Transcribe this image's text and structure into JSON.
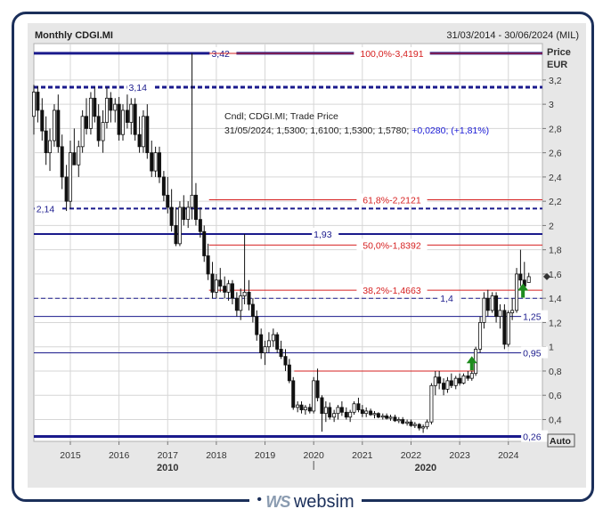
{
  "header": {
    "title": "Monthly CDGI.MI",
    "range": "31/03/2014 - 30/06/2024 (MIL)"
  },
  "info": {
    "line1": "Cndl; CDGI.MI; Trade Price",
    "line2_black": "31/05/2024; 1,5300; 1,6100; 1,5300; 1,5780;",
    "line2_blue": " +0,0280; (+1,81%)"
  },
  "price_axis": {
    "title": "Price",
    "unit": "EUR",
    "auto_label": "Auto"
  },
  "logo": {
    "mark": "WS",
    "text": "websim"
  },
  "chart_data": {
    "type": "candlestick",
    "title": "Monthly CDGI.MI",
    "period": "31/03/2014 - 30/06/2024 (MIL)",
    "ylabel": "Price EUR",
    "ylim": [
      0.22,
      3.5
    ],
    "xlim": [
      2014.25,
      2024.7
    ],
    "y_ticks": [
      {
        "v": 3.2,
        "label": "3,2"
      },
      {
        "v": 3.0,
        "label": "3"
      },
      {
        "v": 2.8,
        "label": "2,8"
      },
      {
        "v": 2.6,
        "label": "2,6"
      },
      {
        "v": 2.4,
        "label": "2,4"
      },
      {
        "v": 2.2,
        "label": "2,2"
      },
      {
        "v": 2.0,
        "label": "2"
      },
      {
        "v": 1.8,
        "label": "1,8"
      },
      {
        "v": 1.6,
        "label": "1,6"
      },
      {
        "v": 1.4,
        "label": "1,4"
      },
      {
        "v": 1.2,
        "label": "1,2"
      },
      {
        "v": 1.0,
        "label": "1"
      },
      {
        "v": 0.8,
        "label": "0,8"
      },
      {
        "v": 0.6,
        "label": "0,6"
      },
      {
        "v": 0.4,
        "label": "0,4"
      }
    ],
    "x_ticks": [
      {
        "v": 2015.0,
        "label": "2015"
      },
      {
        "v": 2016.0,
        "label": "2016"
      },
      {
        "v": 2017.0,
        "label": "2017"
      },
      {
        "v": 2018.0,
        "label": "2018"
      },
      {
        "v": 2019.0,
        "label": "2019"
      },
      {
        "v": 2020.0,
        "label": "2020"
      },
      {
        "v": 2021.0,
        "label": "2021"
      },
      {
        "v": 2022.0,
        "label": "2022"
      },
      {
        "v": 2023.0,
        "label": "2023"
      },
      {
        "v": 2024.0,
        "label": "2024"
      }
    ],
    "decade_labels": [
      {
        "v": 2017.0,
        "label": "2010"
      },
      {
        "v": 2022.3,
        "label": "2020"
      }
    ],
    "hlines": [
      {
        "y": 3.42,
        "label": "3,42",
        "x_label": 2017.9,
        "color": "#1a1a8c",
        "style": "solid",
        "width": 3
      },
      {
        "y": 3.14,
        "label": "3,14",
        "x_label": 2016.2,
        "color": "#1a1a8c",
        "style": "dashed",
        "width": 3
      },
      {
        "y": 2.14,
        "label": "2,14",
        "x_label": 2014.3,
        "color": "#1a1a8c",
        "style": "dashed",
        "width": 2
      },
      {
        "y": 1.93,
        "label": "1,93",
        "x_label": 2020.0,
        "color": "#1a1a8c",
        "style": "solid",
        "width": 2
      },
      {
        "y": 1.4,
        "label": "1,4",
        "x_label": 2022.6,
        "color": "#1a1a8c",
        "style": "dashed",
        "width": 1
      },
      {
        "y": 1.25,
        "label": "1,25",
        "x_label": 2024.3,
        "color": "#1a1a8c",
        "style": "solid",
        "width": 1
      },
      {
        "y": 0.95,
        "label": "0,95",
        "x_label": 2024.3,
        "color": "#1a1a8c",
        "style": "solid",
        "width": 1
      },
      {
        "y": 0.26,
        "label": "0,26",
        "x_label": 2024.3,
        "color": "#1a1a8c",
        "style": "solid",
        "width": 3
      }
    ],
    "fib_lines": [
      {
        "y": 3.4191,
        "label": "100,0%-3,4191",
        "x_start": 2017.85
      },
      {
        "y": 2.2121,
        "label": "61,8%-2,2121",
        "x_start": 2017.85
      },
      {
        "y": 1.8392,
        "label": "50,0%-1,8392",
        "x_start": 2017.85
      },
      {
        "y": 1.4663,
        "label": "38,2%-1,4663",
        "x_start": 2017.85
      }
    ],
    "red_segments": [
      {
        "y": 0.8,
        "x_start": 2019.6,
        "x_end": 2023.3
      }
    ],
    "markers": [
      {
        "type": "up-arrow",
        "x": 2023.25,
        "y": 0.82,
        "color": "#1e8c1e"
      },
      {
        "type": "up-arrow",
        "x": 2024.3,
        "y": 1.42,
        "color": "#1e8c1e"
      }
    ],
    "candles": [
      {
        "t": 2014.25,
        "o": 2.9,
        "h": 3.16,
        "l": 2.75,
        "c": 3.1
      },
      {
        "t": 2014.33,
        "o": 3.1,
        "h": 3.15,
        "l": 2.85,
        "c": 2.95
      },
      {
        "t": 2014.42,
        "o": 2.95,
        "h": 3.05,
        "l": 2.7,
        "c": 2.78
      },
      {
        "t": 2014.5,
        "o": 2.78,
        "h": 2.9,
        "l": 2.5,
        "c": 2.6
      },
      {
        "t": 2014.58,
        "o": 2.6,
        "h": 2.8,
        "l": 2.45,
        "c": 2.7
      },
      {
        "t": 2014.67,
        "o": 2.7,
        "h": 3.0,
        "l": 2.65,
        "c": 2.95
      },
      {
        "t": 2014.75,
        "o": 2.95,
        "h": 3.08,
        "l": 2.6,
        "c": 2.65
      },
      {
        "t": 2014.83,
        "o": 2.65,
        "h": 2.75,
        "l": 2.3,
        "c": 2.4
      },
      {
        "t": 2014.92,
        "o": 2.4,
        "h": 2.5,
        "l": 2.12,
        "c": 2.2
      },
      {
        "t": 2015.0,
        "o": 2.2,
        "h": 2.7,
        "l": 2.14,
        "c": 2.6
      },
      {
        "t": 2015.08,
        "o": 2.6,
        "h": 2.8,
        "l": 2.5,
        "c": 2.5
      },
      {
        "t": 2015.17,
        "o": 2.5,
        "h": 2.7,
        "l": 2.4,
        "c": 2.65
      },
      {
        "t": 2015.25,
        "o": 2.65,
        "h": 2.95,
        "l": 2.6,
        "c": 2.9
      },
      {
        "t": 2015.33,
        "o": 2.9,
        "h": 3.05,
        "l": 2.75,
        "c": 2.8
      },
      {
        "t": 2015.42,
        "o": 2.8,
        "h": 3.1,
        "l": 2.75,
        "c": 3.05
      },
      {
        "t": 2015.5,
        "o": 3.05,
        "h": 3.14,
        "l": 2.85,
        "c": 2.9
      },
      {
        "t": 2015.58,
        "o": 2.9,
        "h": 3.0,
        "l": 2.65,
        "c": 2.7
      },
      {
        "t": 2015.67,
        "o": 2.7,
        "h": 2.95,
        "l": 2.6,
        "c": 2.85
      },
      {
        "t": 2015.75,
        "o": 2.85,
        "h": 3.14,
        "l": 2.8,
        "c": 3.05
      },
      {
        "t": 2015.83,
        "o": 3.05,
        "h": 3.1,
        "l": 2.85,
        "c": 2.95
      },
      {
        "t": 2015.92,
        "o": 2.95,
        "h": 3.05,
        "l": 2.85,
        "c": 3.0
      },
      {
        "t": 2016.0,
        "o": 3.0,
        "h": 3.06,
        "l": 2.7,
        "c": 2.75
      },
      {
        "t": 2016.08,
        "o": 2.75,
        "h": 3.0,
        "l": 2.7,
        "c": 2.95
      },
      {
        "t": 2016.17,
        "o": 2.95,
        "h": 3.08,
        "l": 2.8,
        "c": 2.85
      },
      {
        "t": 2016.25,
        "o": 2.85,
        "h": 3.05,
        "l": 2.75,
        "c": 3.0
      },
      {
        "t": 2016.33,
        "o": 3.0,
        "h": 3.05,
        "l": 2.7,
        "c": 2.75
      },
      {
        "t": 2016.42,
        "o": 2.75,
        "h": 2.9,
        "l": 2.6,
        "c": 2.65
      },
      {
        "t": 2016.5,
        "o": 2.65,
        "h": 2.95,
        "l": 2.6,
        "c": 2.9
      },
      {
        "t": 2016.58,
        "o": 2.9,
        "h": 3.0,
        "l": 2.55,
        "c": 2.6
      },
      {
        "t": 2016.67,
        "o": 2.6,
        "h": 2.7,
        "l": 2.4,
        "c": 2.45
      },
      {
        "t": 2016.75,
        "o": 2.45,
        "h": 2.65,
        "l": 2.4,
        "c": 2.6
      },
      {
        "t": 2016.83,
        "o": 2.6,
        "h": 2.65,
        "l": 2.35,
        "c": 2.4
      },
      {
        "t": 2016.92,
        "o": 2.4,
        "h": 2.45,
        "l": 2.2,
        "c": 2.25
      },
      {
        "t": 2017.0,
        "o": 2.25,
        "h": 2.4,
        "l": 2.1,
        "c": 2.15
      },
      {
        "t": 2017.08,
        "o": 2.15,
        "h": 2.3,
        "l": 1.95,
        "c": 2.0
      },
      {
        "t": 2017.17,
        "o": 2.0,
        "h": 2.15,
        "l": 1.83,
        "c": 1.85
      },
      {
        "t": 2017.25,
        "o": 1.85,
        "h": 2.2,
        "l": 1.83,
        "c": 2.15
      },
      {
        "t": 2017.33,
        "o": 2.15,
        "h": 2.25,
        "l": 2.0,
        "c": 2.05
      },
      {
        "t": 2017.42,
        "o": 2.05,
        "h": 2.2,
        "l": 1.98,
        "c": 2.15
      },
      {
        "t": 2017.5,
        "o": 2.15,
        "h": 3.42,
        "l": 2.05,
        "c": 2.25
      },
      {
        "t": 2017.58,
        "o": 2.25,
        "h": 2.35,
        "l": 2.0,
        "c": 2.05
      },
      {
        "t": 2017.67,
        "o": 2.05,
        "h": 2.15,
        "l": 1.9,
        "c": 1.95
      },
      {
        "t": 2017.75,
        "o": 1.95,
        "h": 2.0,
        "l": 1.7,
        "c": 1.75
      },
      {
        "t": 2017.83,
        "o": 1.75,
        "h": 1.85,
        "l": 1.55,
        "c": 1.6
      },
      {
        "t": 2017.92,
        "o": 1.6,
        "h": 1.7,
        "l": 1.4,
        "c": 1.45
      },
      {
        "t": 2018.0,
        "o": 1.45,
        "h": 1.6,
        "l": 1.4,
        "c": 1.55
      },
      {
        "t": 2018.08,
        "o": 1.55,
        "h": 1.65,
        "l": 1.45,
        "c": 1.5
      },
      {
        "t": 2018.17,
        "o": 1.5,
        "h": 1.58,
        "l": 1.4,
        "c": 1.45
      },
      {
        "t": 2018.25,
        "o": 1.45,
        "h": 1.55,
        "l": 1.38,
        "c": 1.52
      },
      {
        "t": 2018.33,
        "o": 1.52,
        "h": 1.55,
        "l": 1.35,
        "c": 1.4
      },
      {
        "t": 2018.42,
        "o": 1.4,
        "h": 1.45,
        "l": 1.25,
        "c": 1.3
      },
      {
        "t": 2018.5,
        "o": 1.3,
        "h": 1.48,
        "l": 1.22,
        "c": 1.42
      },
      {
        "t": 2018.58,
        "o": 1.42,
        "h": 1.93,
        "l": 1.35,
        "c": 1.45
      },
      {
        "t": 2018.67,
        "o": 1.45,
        "h": 1.55,
        "l": 1.3,
        "c": 1.35
      },
      {
        "t": 2018.75,
        "o": 1.35,
        "h": 1.4,
        "l": 1.2,
        "c": 1.25
      },
      {
        "t": 2018.83,
        "o": 1.25,
        "h": 1.3,
        "l": 1.05,
        "c": 1.1
      },
      {
        "t": 2018.92,
        "o": 1.1,
        "h": 1.15,
        "l": 0.9,
        "c": 0.95
      },
      {
        "t": 2019.0,
        "o": 0.95,
        "h": 1.05,
        "l": 0.85,
        "c": 1.0
      },
      {
        "t": 2019.08,
        "o": 1.0,
        "h": 1.12,
        "l": 0.95,
        "c": 1.05
      },
      {
        "t": 2019.17,
        "o": 1.05,
        "h": 1.15,
        "l": 1.0,
        "c": 1.1
      },
      {
        "t": 2019.25,
        "o": 1.1,
        "h": 1.12,
        "l": 0.95,
        "c": 0.98
      },
      {
        "t": 2019.33,
        "o": 0.98,
        "h": 1.05,
        "l": 0.9,
        "c": 0.92
      },
      {
        "t": 2019.42,
        "o": 0.92,
        "h": 0.98,
        "l": 0.8,
        "c": 0.85
      },
      {
        "t": 2019.5,
        "o": 0.85,
        "h": 0.9,
        "l": 0.7,
        "c": 0.72
      },
      {
        "t": 2019.58,
        "o": 0.72,
        "h": 0.75,
        "l": 0.48,
        "c": 0.5
      },
      {
        "t": 2019.67,
        "o": 0.5,
        "h": 0.55,
        "l": 0.46,
        "c": 0.52
      },
      {
        "t": 2019.75,
        "o": 0.52,
        "h": 0.55,
        "l": 0.45,
        "c": 0.48
      },
      {
        "t": 2019.83,
        "o": 0.48,
        "h": 0.52,
        "l": 0.44,
        "c": 0.5
      },
      {
        "t": 2019.92,
        "o": 0.5,
        "h": 0.53,
        "l": 0.45,
        "c": 0.47
      },
      {
        "t": 2020.0,
        "o": 0.47,
        "h": 0.75,
        "l": 0.45,
        "c": 0.72
      },
      {
        "t": 2020.08,
        "o": 0.72,
        "h": 0.82,
        "l": 0.55,
        "c": 0.58
      },
      {
        "t": 2020.17,
        "o": 0.58,
        "h": 0.6,
        "l": 0.3,
        "c": 0.45
      },
      {
        "t": 2020.25,
        "o": 0.45,
        "h": 0.55,
        "l": 0.38,
        "c": 0.5
      },
      {
        "t": 2020.33,
        "o": 0.5,
        "h": 0.54,
        "l": 0.4,
        "c": 0.42
      },
      {
        "t": 2020.42,
        "o": 0.42,
        "h": 0.48,
        "l": 0.38,
        "c": 0.45
      },
      {
        "t": 2020.5,
        "o": 0.45,
        "h": 0.52,
        "l": 0.4,
        "c": 0.5
      },
      {
        "t": 2020.58,
        "o": 0.5,
        "h": 0.55,
        "l": 0.43,
        "c": 0.46
      },
      {
        "t": 2020.67,
        "o": 0.46,
        "h": 0.5,
        "l": 0.4,
        "c": 0.42
      },
      {
        "t": 2020.75,
        "o": 0.42,
        "h": 0.48,
        "l": 0.38,
        "c": 0.46
      },
      {
        "t": 2020.83,
        "o": 0.46,
        "h": 0.55,
        "l": 0.44,
        "c": 0.53
      },
      {
        "t": 2020.92,
        "o": 0.53,
        "h": 0.58,
        "l": 0.46,
        "c": 0.48
      },
      {
        "t": 2021.0,
        "o": 0.48,
        "h": 0.52,
        "l": 0.42,
        "c": 0.45
      },
      {
        "t": 2021.08,
        "o": 0.45,
        "h": 0.5,
        "l": 0.42,
        "c": 0.47
      },
      {
        "t": 2021.17,
        "o": 0.47,
        "h": 0.49,
        "l": 0.43,
        "c": 0.44
      },
      {
        "t": 2021.25,
        "o": 0.44,
        "h": 0.47,
        "l": 0.41,
        "c": 0.45
      },
      {
        "t": 2021.33,
        "o": 0.45,
        "h": 0.46,
        "l": 0.41,
        "c": 0.42
      },
      {
        "t": 2021.42,
        "o": 0.42,
        "h": 0.45,
        "l": 0.4,
        "c": 0.43
      },
      {
        "t": 2021.5,
        "o": 0.43,
        "h": 0.45,
        "l": 0.4,
        "c": 0.41
      },
      {
        "t": 2021.58,
        "o": 0.41,
        "h": 0.44,
        "l": 0.39,
        "c": 0.42
      },
      {
        "t": 2021.67,
        "o": 0.42,
        "h": 0.44,
        "l": 0.38,
        "c": 0.39
      },
      {
        "t": 2021.75,
        "o": 0.39,
        "h": 0.42,
        "l": 0.37,
        "c": 0.4
      },
      {
        "t": 2021.83,
        "o": 0.4,
        "h": 0.42,
        "l": 0.36,
        "c": 0.37
      },
      {
        "t": 2021.92,
        "o": 0.37,
        "h": 0.4,
        "l": 0.35,
        "c": 0.38
      },
      {
        "t": 2022.0,
        "o": 0.38,
        "h": 0.4,
        "l": 0.34,
        "c": 0.35
      },
      {
        "t": 2022.08,
        "o": 0.35,
        "h": 0.38,
        "l": 0.33,
        "c": 0.36
      },
      {
        "t": 2022.17,
        "o": 0.36,
        "h": 0.37,
        "l": 0.31,
        "c": 0.33
      },
      {
        "t": 2022.25,
        "o": 0.33,
        "h": 0.36,
        "l": 0.29,
        "c": 0.34
      },
      {
        "t": 2022.33,
        "o": 0.34,
        "h": 0.4,
        "l": 0.32,
        "c": 0.38
      },
      {
        "t": 2022.42,
        "o": 0.38,
        "h": 0.7,
        "l": 0.36,
        "c": 0.68
      },
      {
        "t": 2022.5,
        "o": 0.68,
        "h": 0.8,
        "l": 0.6,
        "c": 0.75
      },
      {
        "t": 2022.58,
        "o": 0.75,
        "h": 0.8,
        "l": 0.65,
        "c": 0.7
      },
      {
        "t": 2022.67,
        "o": 0.7,
        "h": 0.74,
        "l": 0.6,
        "c": 0.65
      },
      {
        "t": 2022.75,
        "o": 0.65,
        "h": 0.75,
        "l": 0.62,
        "c": 0.72
      },
      {
        "t": 2022.83,
        "o": 0.72,
        "h": 0.78,
        "l": 0.66,
        "c": 0.68
      },
      {
        "t": 2022.92,
        "o": 0.68,
        "h": 0.76,
        "l": 0.65,
        "c": 0.74
      },
      {
        "t": 2023.0,
        "o": 0.74,
        "h": 0.78,
        "l": 0.68,
        "c": 0.7
      },
      {
        "t": 2023.08,
        "o": 0.7,
        "h": 0.78,
        "l": 0.69,
        "c": 0.76
      },
      {
        "t": 2023.17,
        "o": 0.76,
        "h": 0.8,
        "l": 0.72,
        "c": 0.74
      },
      {
        "t": 2023.25,
        "o": 0.74,
        "h": 0.8,
        "l": 0.72,
        "c": 0.78
      },
      {
        "t": 2023.33,
        "o": 0.78,
        "h": 1.0,
        "l": 0.76,
        "c": 0.98
      },
      {
        "t": 2023.42,
        "o": 0.98,
        "h": 1.25,
        "l": 0.95,
        "c": 1.2
      },
      {
        "t": 2023.5,
        "o": 1.2,
        "h": 1.45,
        "l": 1.15,
        "c": 1.4
      },
      {
        "t": 2023.58,
        "o": 1.4,
        "h": 1.47,
        "l": 1.25,
        "c": 1.3
      },
      {
        "t": 2023.67,
        "o": 1.3,
        "h": 1.45,
        "l": 1.28,
        "c": 1.42
      },
      {
        "t": 2023.75,
        "o": 1.42,
        "h": 1.45,
        "l": 1.2,
        "c": 1.25
      },
      {
        "t": 2023.83,
        "o": 1.25,
        "h": 1.35,
        "l": 1.15,
        "c": 1.3
      },
      {
        "t": 2023.92,
        "o": 1.3,
        "h": 1.35,
        "l": 0.98,
        "c": 1.02
      },
      {
        "t": 2024.0,
        "o": 1.02,
        "h": 1.3,
        "l": 1.0,
        "c": 1.28
      },
      {
        "t": 2024.08,
        "o": 1.28,
        "h": 1.4,
        "l": 1.22,
        "c": 1.3
      },
      {
        "t": 2024.17,
        "o": 1.3,
        "h": 1.65,
        "l": 1.28,
        "c": 1.6
      },
      {
        "t": 2024.25,
        "o": 1.6,
        "h": 1.8,
        "l": 1.5,
        "c": 1.55
      },
      {
        "t": 2024.33,
        "o": 1.55,
        "h": 1.7,
        "l": 1.48,
        "c": 1.5
      },
      {
        "t": 2024.42,
        "o": 1.53,
        "h": 1.61,
        "l": 1.53,
        "c": 1.578
      }
    ],
    "last_marker": {
      "y": 1.578
    }
  }
}
